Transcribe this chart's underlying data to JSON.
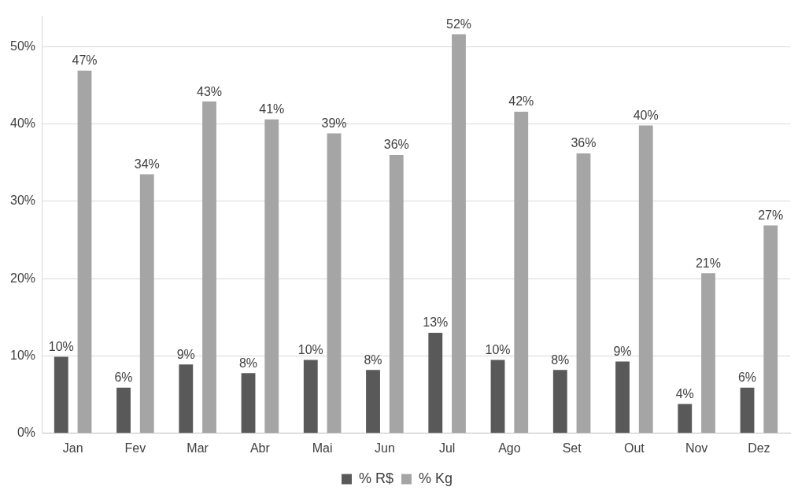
{
  "chart_data": {
    "type": "bar",
    "categories": [
      "Jan",
      "Fev",
      "Mar",
      "Abr",
      "Mai",
      "Jun",
      "Jul",
      "Ago",
      "Set",
      "Out",
      "Nov",
      "Dez"
    ],
    "series": [
      {
        "name": "% R$",
        "color": "#595959",
        "values": [
          9.9,
          5.9,
          8.9,
          7.8,
          9.5,
          8.2,
          13.0,
          9.5,
          8.2,
          9.3,
          3.8,
          5.9
        ],
        "value_labels": [
          "10%",
          "6%",
          "9%",
          "8%",
          "10%",
          "8%",
          "13%",
          "10%",
          "8%",
          "9%",
          "4%",
          "6%"
        ]
      },
      {
        "name": "% Kg",
        "color": "#a5a5a5",
        "values": [
          46.9,
          33.5,
          42.9,
          40.6,
          38.8,
          36.0,
          51.6,
          41.6,
          36.2,
          39.8,
          20.7,
          26.9
        ],
        "value_labels": [
          "47%",
          "34%",
          "43%",
          "41%",
          "39%",
          "36%",
          "52%",
          "42%",
          "36%",
          "40%",
          "21%",
          "27%"
        ]
      }
    ],
    "ylim": [
      0,
      54
    ],
    "yticks": [
      {
        "value": 0,
        "label": "0%"
      },
      {
        "value": 10,
        "label": "10%"
      },
      {
        "value": 20,
        "label": "20%"
      },
      {
        "value": 30,
        "label": "30%"
      },
      {
        "value": 40,
        "label": "40%"
      },
      {
        "value": 50,
        "label": "50%"
      }
    ],
    "grid": "y",
    "legend": "bottom"
  }
}
